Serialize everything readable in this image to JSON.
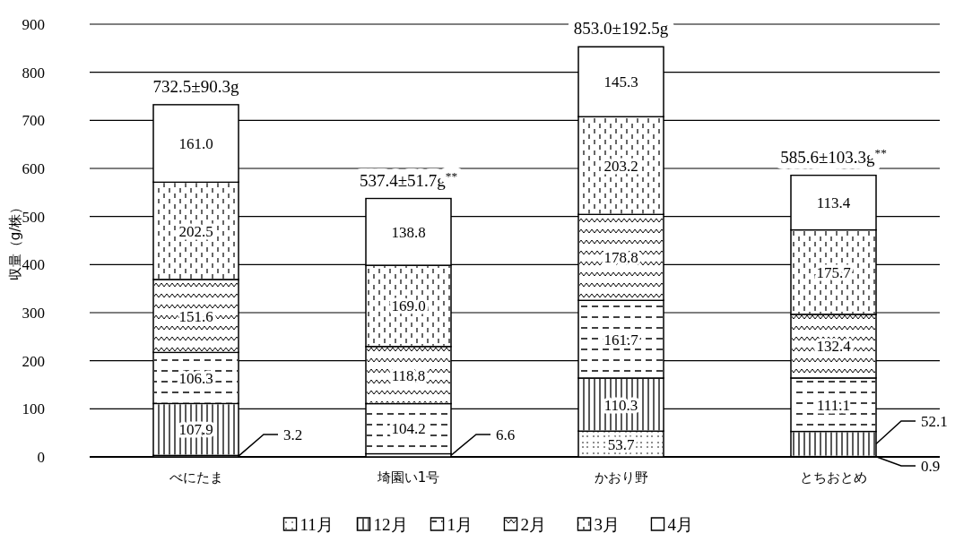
{
  "chart_data": {
    "type": "bar",
    "stacked": true,
    "ylabel": "収量（g/株）",
    "categories": [
      "べにたま",
      "埼園い1号",
      "かおり野",
      "とちおとめ"
    ],
    "series": [
      {
        "name": "11月",
        "color": "#ffffff",
        "values": [
          3.2,
          6.6,
          53.7,
          0.9
        ],
        "value_labels": [
          "3.2",
          "6.6",
          "53.7",
          "0.9"
        ]
      },
      {
        "name": "12月",
        "color": "#ffffff",
        "values": [
          107.9,
          null,
          110.3,
          52.1
        ],
        "value_labels": [
          "107.9",
          null,
          "110.3",
          "52.1"
        ]
      },
      {
        "name": "1月",
        "color": "#ffffff",
        "values": [
          106.3,
          104.2,
          161.7,
          111.1
        ],
        "value_labels": [
          "106.3",
          "104.2",
          "161.7",
          "111.1"
        ]
      },
      {
        "name": "2月",
        "color": "#ffffff",
        "values": [
          151.6,
          118.8,
          178.8,
          132.4
        ],
        "value_labels": [
          "151.6",
          "118.8",
          "178.8",
          "132.4"
        ]
      },
      {
        "name": "3月",
        "color": "#ffffff",
        "values": [
          202.5,
          169.0,
          203.2,
          175.7
        ],
        "value_labels": [
          "202.5",
          "169.0",
          "203.2",
          "175.7"
        ]
      },
      {
        "name": "4月",
        "color": "#ffffff",
        "values": [
          161.0,
          138.8,
          145.3,
          113.4
        ],
        "value_labels": [
          "161.0",
          "138.8",
          "145.3",
          "113.4"
        ]
      }
    ],
    "annotations": [
      {
        "text": "732.5±90.3g",
        "x": "べにたま",
        "y": 732.5
      },
      {
        "text": "537.4±51.7g$^{**}$",
        "x": "埼園い1号",
        "y": 537.4
      },
      {
        "text": "853.0±192.5g",
        "x": "かおり野",
        "y": 853.0
      },
      {
        "text": "585.6±103.3g$^{**}$",
        "x": "とちおとめ",
        "y": 585.6
      }
    ],
    "ylim": [
      0,
      900
    ],
    "yticks": [
      0,
      100,
      200,
      300,
      400,
      500,
      600,
      700,
      800,
      900
    ],
    "grid": "y",
    "legend": "bottom"
  }
}
